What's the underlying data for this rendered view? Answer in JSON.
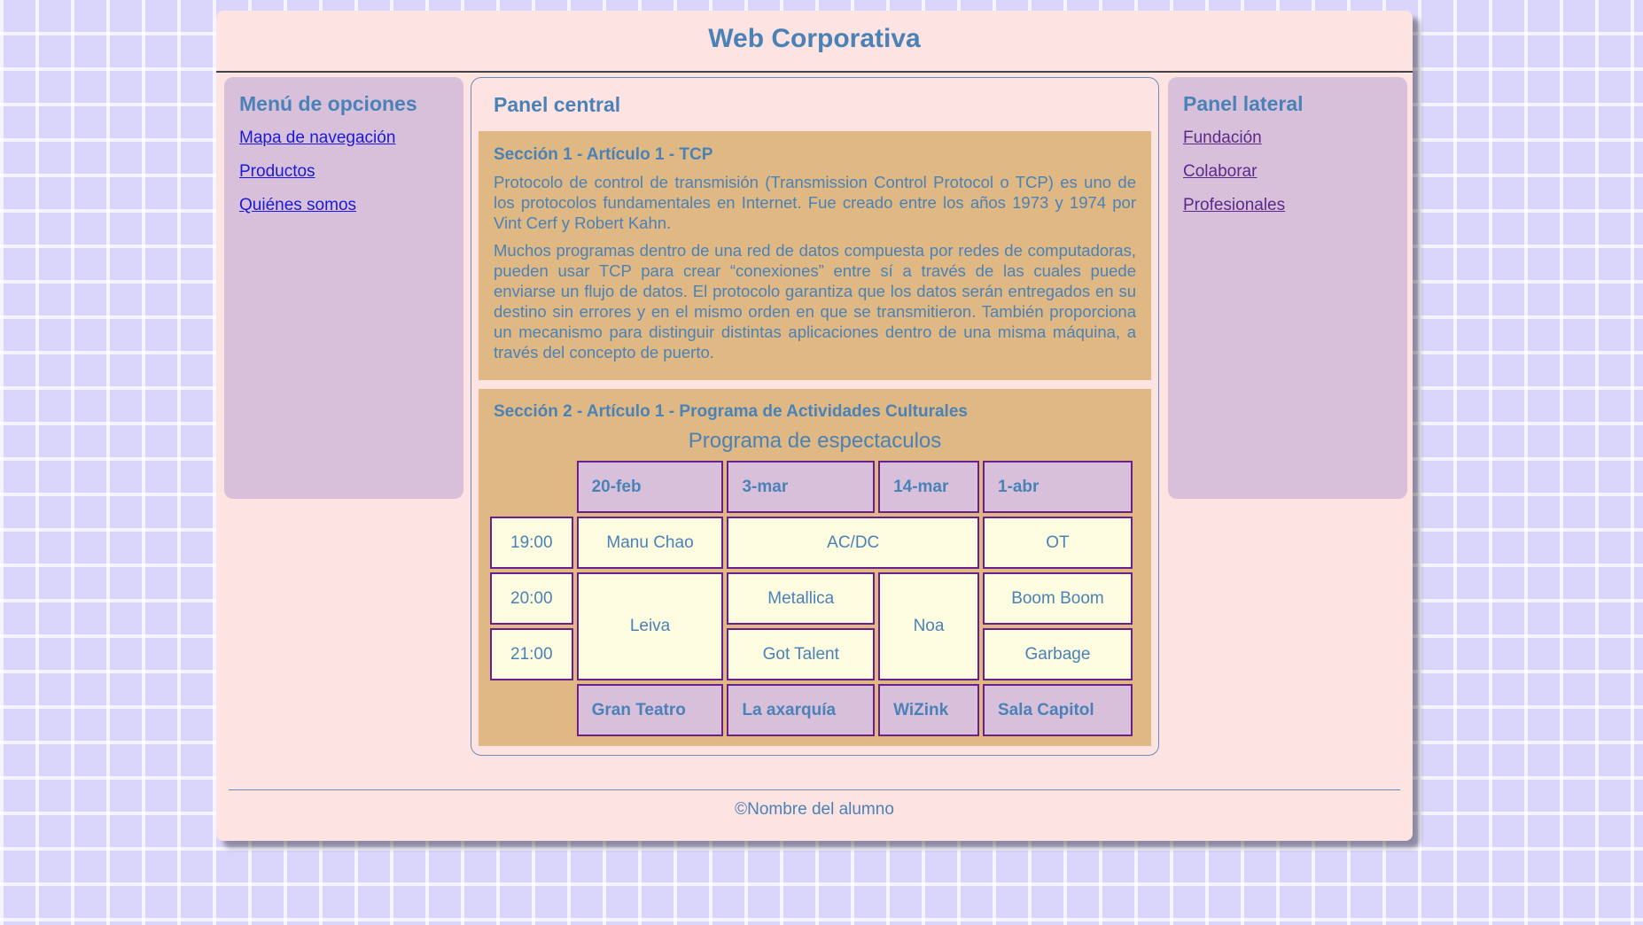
{
  "header": {
    "title": "Web Corporativa"
  },
  "left_menu": {
    "title": "Menú de opciones",
    "links": [
      "Mapa de navegación",
      "Productos",
      "Quiénes somos"
    ]
  },
  "right_panel": {
    "title": "Panel lateral",
    "links": [
      "Fundación",
      "Colaborar",
      "Profesionales"
    ]
  },
  "center": {
    "title": "Panel central",
    "section1": {
      "heading": "Sección 1 - Artículo 1 - TCP",
      "p1": "Protocolo de control de transmisión (Transmission Control Protocol o TCP) es uno de los protocolos fundamentales en Internet. Fue creado entre los años 1973 y 1974 por Vint Cerf y Robert Kahn.",
      "p2": "Muchos programas dentro de una red de datos compuesta por redes de computadoras, pueden usar TCP para crear “conexiones” entre sí a través de las cuales puede enviarse un flujo de datos. El protocolo garantiza que los datos serán entregados en su destino sin errores y en el mismo orden en que se transmitieron. También proporciona un mecanismo para distinguir distintas aplicaciones dentro de una misma máquina, a través del concepto de puerto."
    },
    "section2": {
      "heading": "Sección 2 - Artículo 1 - Programa de Actividades Culturales",
      "table": {
        "caption": "Programa de espectaculos",
        "dates": [
          "20-feb",
          "3-mar",
          "14-mar",
          "1-abr"
        ],
        "times": [
          "19:00",
          "20:00",
          "21:00"
        ],
        "events": {
          "manu_chao": "Manu Chao",
          "acdc": "AC/DC",
          "ot": "OT",
          "leiva": "Leiva",
          "metallica": "Metallica",
          "noa": "Noa",
          "boom_boom": "Boom Boom",
          "got_talent": "Got Talent",
          "garbage": "Garbage"
        },
        "venues": [
          "Gran Teatro",
          "La axarquía",
          "WiZink",
          "Sala Capitol"
        ]
      }
    }
  },
  "footer": {
    "text": "©Nombre del alumno"
  }
}
